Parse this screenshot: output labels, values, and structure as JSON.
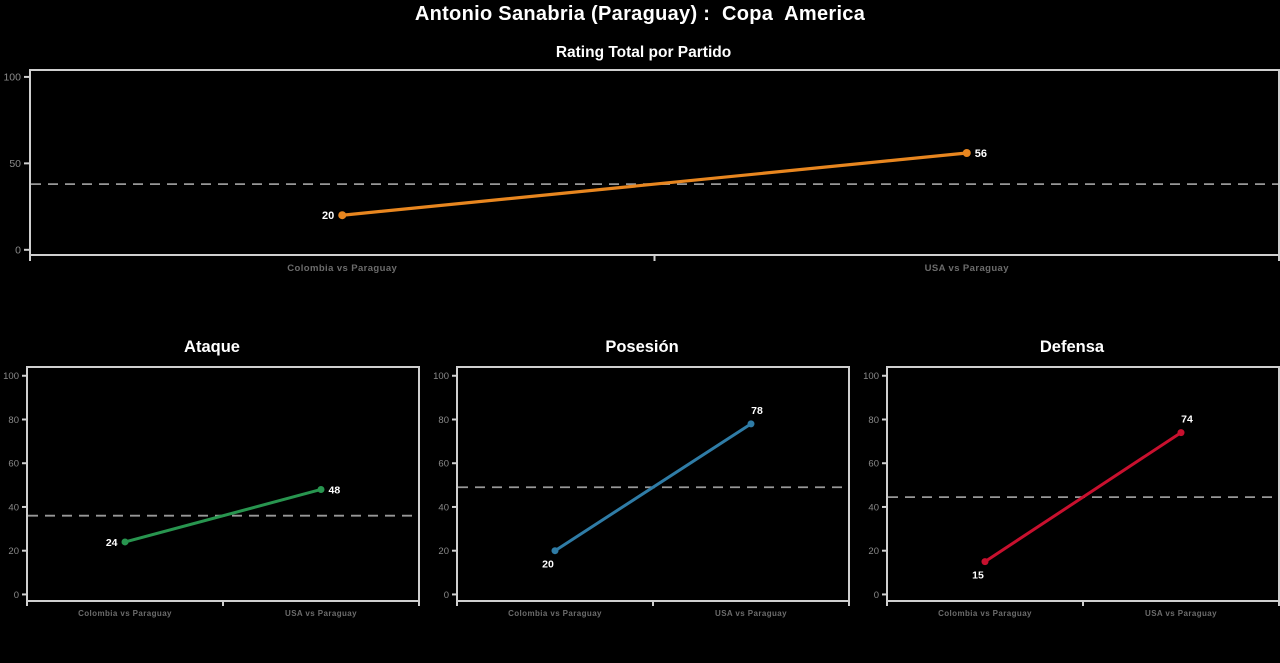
{
  "page": {
    "title": "Antonio Sanabria (Paraguay) :  Copa  America",
    "background": "#000000",
    "palette": {
      "title_text": "#ffffff",
      "spine": "#cfcfcf",
      "dashed_line": "#989898",
      "ytick_label": "#8a8a8a",
      "category_label": "#6c6c6c",
      "value_label": "#ffffff"
    }
  },
  "chart_data": [
    {
      "type": "line",
      "title": "Rating Total por Partido",
      "categories": [
        "Colombia vs Paraguay",
        "USA vs Paraguay"
      ],
      "series": [
        {
          "name": "Rating Total",
          "values": [
            20,
            56
          ]
        }
      ],
      "mean_dashed_line": 38,
      "color": "#E8861F",
      "ylim": [
        -3,
        104
      ],
      "yticks": [
        0,
        50,
        100
      ],
      "grid": false,
      "legend": false,
      "label_placement": [
        "left",
        "right"
      ]
    },
    {
      "type": "line",
      "title": "Ataque",
      "categories": [
        "Colombia vs Paraguay",
        "USA vs Paraguay"
      ],
      "series": [
        {
          "name": "Ataque",
          "values": [
            24,
            48
          ]
        }
      ],
      "mean_dashed_line": 36,
      "color": "#28954F",
      "ylim": [
        -3,
        104
      ],
      "yticks": [
        0,
        20,
        40,
        60,
        80,
        100
      ],
      "grid": false,
      "legend": false,
      "label_placement": [
        "left",
        "right"
      ]
    },
    {
      "type": "line",
      "title": "Posesión",
      "categories": [
        "Colombia vs Paraguay",
        "USA vs Paraguay"
      ],
      "series": [
        {
          "name": "Posesión",
          "values": [
            20,
            78
          ]
        }
      ],
      "mean_dashed_line": 49,
      "color": "#2F7CA6",
      "ylim": [
        -3,
        104
      ],
      "yticks": [
        0,
        20,
        40,
        60,
        80,
        100
      ],
      "grid": false,
      "legend": false,
      "label_placement": [
        "below",
        "above"
      ]
    },
    {
      "type": "line",
      "title": "Defensa",
      "categories": [
        "Colombia vs Paraguay",
        "USA vs Paraguay"
      ],
      "series": [
        {
          "name": "Defensa",
          "values": [
            15,
            74
          ]
        }
      ],
      "mean_dashed_line": 44.5,
      "color": "#C8102E",
      "ylim": [
        -3,
        104
      ],
      "yticks": [
        0,
        20,
        40,
        60,
        80,
        100
      ],
      "grid": false,
      "legend": false,
      "label_placement": [
        "below",
        "above"
      ]
    }
  ]
}
